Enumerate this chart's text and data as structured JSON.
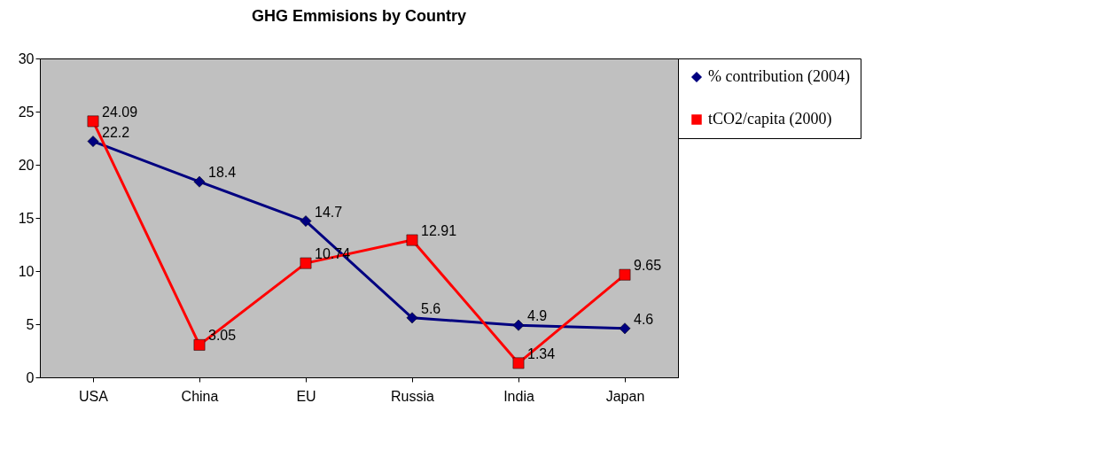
{
  "chart_data": {
    "type": "line",
    "title": "GHG Emmisions by Country",
    "categories": [
      "USA",
      "China",
      "EU",
      "Russia",
      "India",
      "Japan"
    ],
    "series": [
      {
        "name": "% contribution (2004)",
        "color": "#000080",
        "marker": "diamond",
        "values": [
          22.2,
          18.4,
          14.7,
          5.6,
          4.9,
          4.6
        ]
      },
      {
        "name": "tCO2/capita (2000)",
        "color": "#ff0000",
        "marker": "square",
        "values": [
          24.09,
          3.05,
          10.74,
          12.91,
          1.34,
          9.65
        ]
      }
    ],
    "ylim": [
      0,
      30
    ],
    "yticks": [
      0,
      5,
      10,
      15,
      20,
      25,
      30
    ],
    "grid": false,
    "legend": "right",
    "data_labels": true
  }
}
